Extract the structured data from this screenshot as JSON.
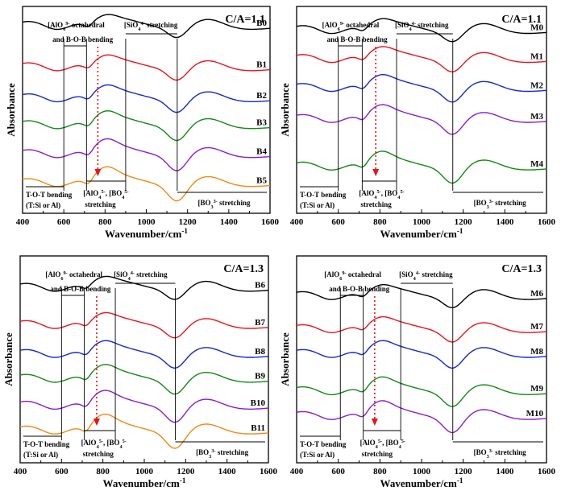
{
  "chart_data": [
    {
      "type": "line",
      "title": "C/A=1.1",
      "xlabel": "Wavenumber/cm",
      "xlabel_sup": "-1",
      "ylabel": "Absorbance",
      "xlim": [
        400,
        1600
      ],
      "xticks": [
        "400",
        "600",
        "800",
        "1000",
        "1200",
        "1400",
        "1600"
      ],
      "vlines": [
        600,
        710,
        900,
        1150
      ],
      "arrow_x": 765,
      "annotations": {
        "aloct": "[AlO",
        "aloct_sub": "6",
        "aloct_sup": "9-",
        "aloct_tail": " octahedral",
        "bob": "and  B-O-B bending",
        "sio": "[SiO",
        "sio_sub": "4",
        "sio_sup": "4-",
        "sio_tail": " stretching",
        "tot1": "T-O-T bending",
        "tot2": "(T:Si or Al)",
        "alo4a": "[AlO",
        "alo4a_sub": "4",
        "alo4a_sup": "5-",
        "alo4b": ", [BO",
        "alo4b_sub": "4",
        "alo4b_sup": "5-",
        "stretch": "stretching",
        "bo3": "[BO",
        "bo3_sub": "3",
        "bo3_sup": "3-",
        "bo3_tail": " stretching"
      },
      "series": [
        {
          "name": "B0",
          "color": "#000000",
          "level": 0.9
        },
        {
          "name": "B1",
          "color": "#e8141c",
          "level": 0.7
        },
        {
          "name": "B2",
          "color": "#1428d0",
          "level": 0.55
        },
        {
          "name": "B3",
          "color": "#128a12",
          "level": 0.42
        },
        {
          "name": "B4",
          "color": "#8a1cd0",
          "level": 0.28
        },
        {
          "name": "B5",
          "color": "#f08a10",
          "level": 0.14
        }
      ]
    },
    {
      "type": "line",
      "title": "C/A=1.1",
      "xlabel": "Wavenumber/cm",
      "xlabel_sup": "-1",
      "ylabel": "Absorbance",
      "xlim": [
        400,
        1600
      ],
      "xticks": [
        "400",
        "600",
        "800",
        "1000",
        "1200",
        "1400",
        "1600"
      ],
      "vlines": [
        600,
        715,
        880,
        1150
      ],
      "arrow_x": 780,
      "annotations": {
        "aloct": "[AlO",
        "aloct_sub": "6",
        "aloct_sup": "9-",
        "aloct_tail": " octahedral",
        "bob": "and  B-O-B bending",
        "sio": "[SiO",
        "sio_sub": "4",
        "sio_sup": "4-",
        "sio_tail": " stretching",
        "tot1": "T-O-T bending",
        "tot2": "(T:Si or Al)",
        "alo4a": "[AlO",
        "alo4a_sub": "4",
        "alo4a_sup": "5-",
        "alo4b": ", [BO",
        "alo4b_sub": "4",
        "alo4b_sup": "5-",
        "stretch": "stretching",
        "bo3": "[BO",
        "bo3_sub": "3",
        "bo3_sup": "3-",
        "bo3_tail": " stretching"
      },
      "series": [
        {
          "name": "M0",
          "color": "#000000",
          "level": 0.88
        },
        {
          "name": "M1",
          "color": "#e8141c",
          "level": 0.74
        },
        {
          "name": "M2",
          "color": "#1428d0",
          "level": 0.6
        },
        {
          "name": "M3",
          "color": "#8a1cd0",
          "level": 0.45
        },
        {
          "name": "M4",
          "color": "#128a12",
          "level": 0.22
        }
      ]
    },
    {
      "type": "line",
      "title": "C/A=1.3",
      "xlabel": "Wavenumber/cm",
      "xlabel_sup": "-1",
      "ylabel": "Absorbance",
      "xlim": [
        400,
        1600
      ],
      "xticks": [
        "400",
        "600",
        "800",
        "1000",
        "1200",
        "1400",
        "1600"
      ],
      "vlines": [
        600,
        710,
        860,
        1150
      ],
      "arrow_x": 770,
      "annotations": {
        "aloct": "[AlO",
        "aloct_sub": "6",
        "aloct_sup": "9-",
        "aloct_tail": " octahedral",
        "bob": "and  B-O-B bending",
        "sio": "[SiO",
        "sio_sub": "4",
        "sio_sup": "4-",
        "sio_tail": " stretching",
        "tot1": "T-O-T bending",
        "tot2": "(T:Si or Al)",
        "alo4a": "[AlO",
        "alo4a_sub": "4",
        "alo4a_sup": "5-",
        "alo4b": ", [BO",
        "alo4b_sub": "4",
        "alo4b_sup": "5-",
        "stretch": "stretching",
        "bo3": "[BO",
        "bo3_sub": "3",
        "bo3_sup": "3-",
        "bo3_tail": " stretching"
      },
      "series": [
        {
          "name": "B6",
          "color": "#000000",
          "level": 0.84
        },
        {
          "name": "B7",
          "color": "#e8141c",
          "level": 0.66
        },
        {
          "name": "B8",
          "color": "#1428d0",
          "level": 0.52
        },
        {
          "name": "B9",
          "color": "#128a12",
          "level": 0.4
        },
        {
          "name": "B10",
          "color": "#8a1cd0",
          "level": 0.27
        },
        {
          "name": "B11",
          "color": "#f08a10",
          "level": 0.15
        }
      ]
    },
    {
      "type": "line",
      "title": "C/A=1.3",
      "xlabel": "Wavenumber/cm",
      "xlabel_sup": "-1",
      "ylabel": "Absorbance",
      "xlim": [
        400,
        1600
      ],
      "xticks": [
        "400",
        "600",
        "800",
        "1000",
        "1200",
        "1400",
        "1600"
      ],
      "vlines": [
        610,
        720,
        900,
        1150
      ],
      "arrow_x": 775,
      "annotations": {
        "aloct": "[AlO",
        "aloct_sub": "6",
        "aloct_sup": "9-",
        "aloct_tail": " octahedral",
        "bob": "and  B-O-B bending",
        "sio": "[SiO",
        "sio_sub": "4",
        "sio_sup": "4-",
        "sio_tail": " stretching",
        "tot1": "T-O-T bending",
        "tot2": "(T:Si or Al)",
        "alo4a": "[AlO",
        "alo4a_sub": "4",
        "alo4a_sup": "5-",
        "alo4b": ", [BO",
        "alo4b_sub": "4",
        "alo4b_sup": "5-",
        "stretch": "stretching",
        "bo3": "[BO",
        "bo3_sub": "3",
        "bo3_sup": "3-",
        "bo3_tail": " stretching"
      },
      "series": [
        {
          "name": "M6",
          "color": "#000000",
          "level": 0.8
        },
        {
          "name": "M7",
          "color": "#e8141c",
          "level": 0.64
        },
        {
          "name": "M8",
          "color": "#1428d0",
          "level": 0.52
        },
        {
          "name": "M9",
          "color": "#128a12",
          "level": 0.34
        },
        {
          "name": "M10",
          "color": "#8a1cd0",
          "level": 0.22
        }
      ]
    }
  ]
}
